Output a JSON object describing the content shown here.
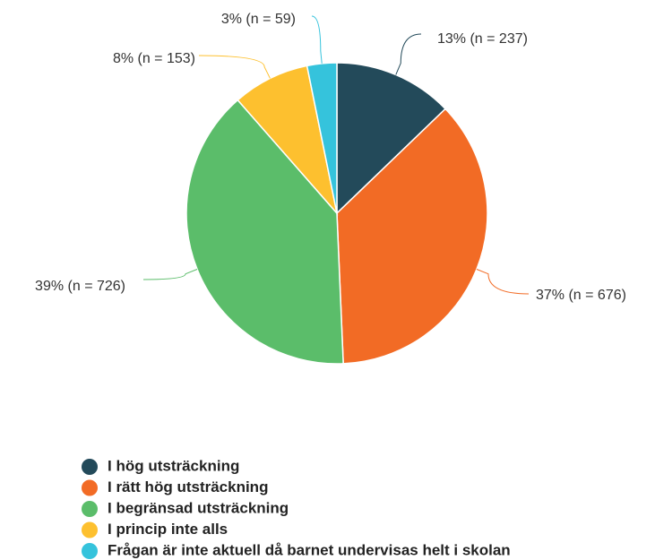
{
  "chart_data": {
    "type": "pie",
    "categories": [
      "I hög utsträckning",
      "I rätt hög utsträckning",
      "I begränsad utsträckning",
      "I princip inte alls",
      "Frågan är inte aktuell då barnet undervisas helt i skolan"
    ],
    "values": [
      237,
      676,
      726,
      153,
      59
    ],
    "value_labels": [
      "13% (n = 237)",
      "37% (n = 676)",
      "39% (n = 726)",
      "8% (n = 153)",
      "3% (n = 59)"
    ],
    "colors": [
      "#234a5a",
      "#f26b25",
      "#5bbd6a",
      "#fdc02f",
      "#35c3dc"
    ]
  }
}
